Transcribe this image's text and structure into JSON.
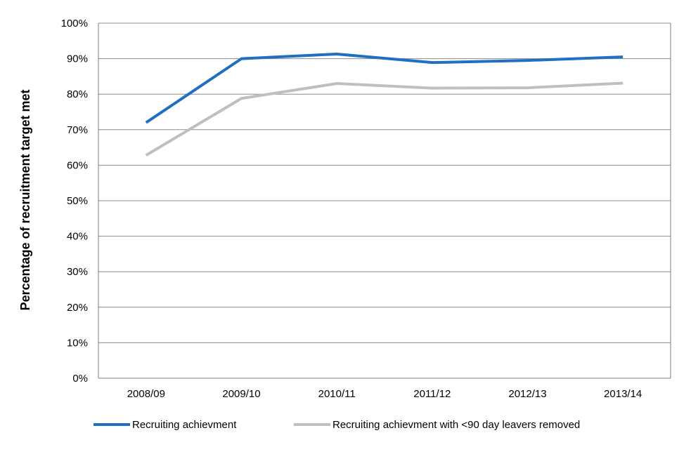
{
  "chart_data": {
    "type": "line",
    "title": "",
    "xlabel": "",
    "ylabel": "Percentage of recruitment target met",
    "categories": [
      "2008/09",
      "2009/10",
      "2010/11",
      "2011/12",
      "2012/13",
      "2013/14"
    ],
    "y_ticks": [
      "0%",
      "10%",
      "20%",
      "30%",
      "40%",
      "50%",
      "60%",
      "70%",
      "80%",
      "90%",
      "100%"
    ],
    "ylim": [
      0,
      100
    ],
    "grid": "horizontal",
    "legend_position": "bottom",
    "series": [
      {
        "name": "Recruiting achievment",
        "color": "#1F6FC5",
        "values": [
          72,
          90,
          91.3,
          88.9,
          89.5,
          90.5
        ]
      },
      {
        "name": "Recruiting achievment with <90 day leavers removed",
        "color": "#BFBFBF",
        "values": [
          62.8,
          78.8,
          83,
          81.7,
          81.8,
          83.1
        ]
      }
    ]
  }
}
